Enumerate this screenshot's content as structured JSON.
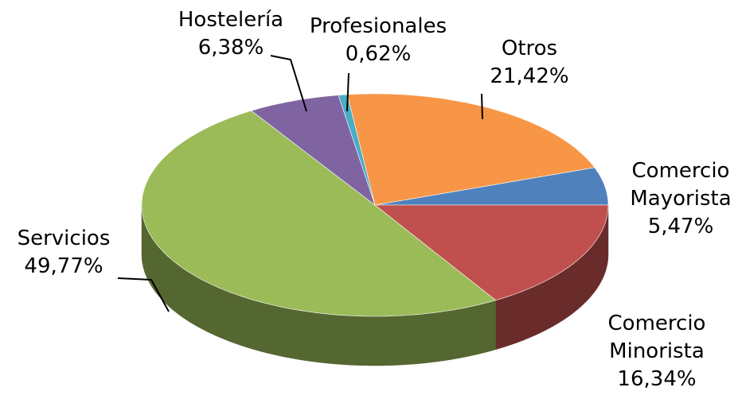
{
  "chart_data": {
    "type": "pie",
    "categories": [
      "Comercio Mayorista",
      "Comercio Minorista",
      "Servicios",
      "Hostelería",
      "Profesionales",
      "Otros"
    ],
    "values": [
      5.47,
      16.34,
      49.77,
      6.38,
      0.62,
      21.42
    ],
    "value_labels": [
      "5,47%",
      "16,34%",
      "49,77%",
      "6,38%",
      "0,62%",
      "21,42%"
    ],
    "colors": [
      "#4f81bd",
      "#c0504d",
      "#9bbb59",
      "#8064a2",
      "#4bacc6",
      "#f79646"
    ]
  }
}
